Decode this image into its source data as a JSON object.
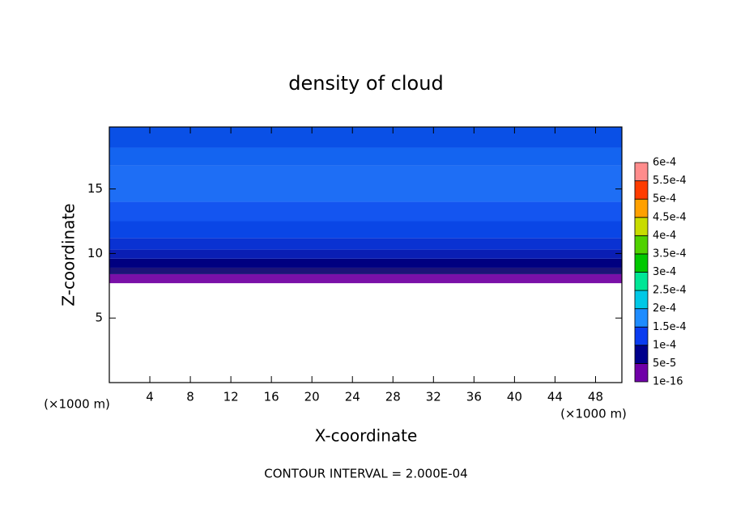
{
  "chart_data": {
    "type": "contour",
    "title": "density of cloud",
    "x_label": "X-coordinate",
    "y_label": "Z-coordinate",
    "x_unit_label": "(×1000 m)",
    "y_unit_label": "(×1000 m)",
    "footnote": "CONTOUR INTERVAL = 2.000E-04",
    "xlim": [
      0,
      50.6
    ],
    "ylim": [
      0,
      19.8
    ],
    "xticks": [
      4,
      8,
      12,
      16,
      20,
      24,
      28,
      32,
      36,
      40,
      44,
      48
    ],
    "yticks": [
      5,
      10,
      15
    ],
    "bands": [
      {
        "zmin": 7.7,
        "zmax": 8.4,
        "color": "#7a10a8"
      },
      {
        "zmin": 8.4,
        "zmax": 8.9,
        "color": "#1c1478"
      },
      {
        "zmin": 8.9,
        "zmax": 9.6,
        "color": "#000080"
      },
      {
        "zmin": 9.6,
        "zmax": 10.3,
        "color": "#0a1eb4"
      },
      {
        "zmin": 10.3,
        "zmax": 11.2,
        "color": "#0a32d2"
      },
      {
        "zmin": 11.2,
        "zmax": 12.5,
        "color": "#0a46e6"
      },
      {
        "zmin": 12.5,
        "zmax": 14,
        "color": "#1455f0"
      },
      {
        "zmin": 14,
        "zmax": 16.8,
        "color": "#1e6ef5"
      },
      {
        "zmin": 16.8,
        "zmax": 18.2,
        "color": "#1464f0"
      },
      {
        "zmin": 18.2,
        "zmax": 19.8,
        "color": "#0a50e6"
      }
    ],
    "colorbar": {
      "levels": [
        {
          "value": 1e-16,
          "label": "1e-16"
        },
        {
          "value": 5e-05,
          "label": "5e-5"
        },
        {
          "value": 0.0001,
          "label": "1e-4"
        },
        {
          "value": 0.00015,
          "label": "1.5e-4"
        },
        {
          "value": 0.0002,
          "label": "2e-4"
        },
        {
          "value": 0.00025,
          "label": "2.5e-4"
        },
        {
          "value": 0.0003,
          "label": "3e-4"
        },
        {
          "value": 0.00035,
          "label": "3.5e-4"
        },
        {
          "value": 0.0004,
          "label": "4e-4"
        },
        {
          "value": 0.00045,
          "label": "4.5e-4"
        },
        {
          "value": 0.0005,
          "label": "5e-4"
        },
        {
          "value": 0.00055,
          "label": "5.5e-4"
        },
        {
          "value": 0.0006,
          "label": "6e-4"
        }
      ],
      "colors": [
        "#7000a8",
        "#00008c",
        "#0a3cf0",
        "#1e8cff",
        "#00c8e6",
        "#00e696",
        "#00c800",
        "#50d200",
        "#c8dc00",
        "#ffa000",
        "#ff3c00",
        "#ff8c8c"
      ]
    }
  }
}
